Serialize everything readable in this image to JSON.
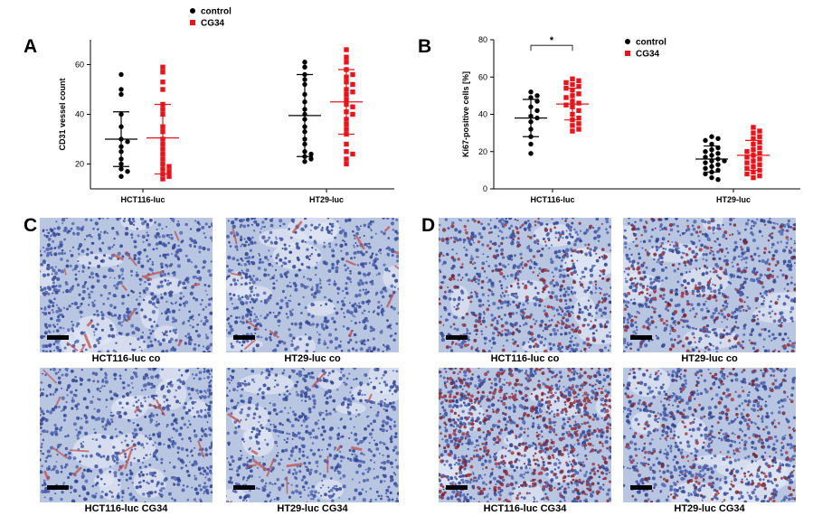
{
  "panel_labels": {
    "a": "A",
    "b": "B",
    "c": "C",
    "d": "D"
  },
  "colors": {
    "control": "#000000",
    "cg34": "#e8141b"
  },
  "chart_data": [
    {
      "id": "A",
      "type": "scatter",
      "ylabel": "CD31 vessel count",
      "ylim": [
        10,
        70
      ],
      "yticks": [
        20,
        40,
        60
      ],
      "groups": [
        "HCT116-luc",
        "HT29-luc"
      ],
      "legend": {
        "position": "top-right",
        "entries": [
          "control",
          "CG34"
        ]
      },
      "series": [
        {
          "name": "control",
          "group": "HCT116-luc",
          "mean": 30,
          "sd_low": 19,
          "sd_high": 41,
          "values": [
            56,
            50,
            48,
            40,
            35,
            30,
            29,
            27,
            25,
            22,
            20,
            18,
            17,
            15
          ]
        },
        {
          "name": "CG34",
          "group": "HCT116-luc",
          "mean": 30.5,
          "sd_low": 16,
          "sd_high": 44,
          "values": [
            59,
            57,
            53,
            50,
            44,
            42,
            40,
            35,
            33,
            30,
            28,
            26,
            24,
            22,
            20,
            19,
            18,
            17,
            16,
            15,
            14
          ]
        },
        {
          "name": "control",
          "group": "HT29-luc",
          "mean": 39.5,
          "sd_low": 23,
          "sd_high": 56,
          "values": [
            61,
            59,
            56,
            54,
            52,
            48,
            45,
            42,
            40,
            38,
            35,
            33,
            30,
            28,
            25,
            24,
            23,
            22,
            21
          ]
        },
        {
          "name": "CG34",
          "group": "HT29-luc",
          "mean": 45,
          "sd_low": 32,
          "sd_high": 58,
          "values": [
            66,
            63,
            61,
            58,
            56,
            55,
            53,
            52,
            50,
            49,
            48,
            46,
            44,
            43,
            41,
            40,
            38,
            36,
            34,
            32,
            28,
            25,
            24,
            22,
            20
          ]
        }
      ]
    },
    {
      "id": "B",
      "type": "scatter",
      "ylabel": "Ki67-positive cells [%]",
      "ylim": [
        0,
        80
      ],
      "yticks": [
        0,
        20,
        40,
        60,
        80
      ],
      "groups": [
        "HCT116-luc",
        "HT29-luc"
      ],
      "significance": {
        "label": "*",
        "between": [
          "control HCT116-luc",
          "CG34 HCT116-luc"
        ]
      },
      "legend": {
        "position": "top-right",
        "entries": [
          "control",
          "CG34"
        ]
      },
      "series": [
        {
          "name": "control",
          "group": "HCT116-luc",
          "mean": 38,
          "sd_low": 28,
          "sd_high": 48,
          "values": [
            52,
            50,
            49,
            47,
            44,
            42,
            39,
            38,
            36,
            32,
            28,
            24,
            19
          ]
        },
        {
          "name": "CG34",
          "group": "HCT116-luc",
          "mean": 45.5,
          "sd_low": 37,
          "sd_high": 54,
          "values": [
            59,
            58,
            57,
            56,
            55,
            54,
            53,
            51,
            50,
            49,
            47,
            46,
            45,
            44,
            42,
            40,
            38,
            37,
            35,
            34,
            32,
            31
          ]
        },
        {
          "name": "control",
          "group": "HT29-luc",
          "mean": 16,
          "sd_low": 9,
          "sd_high": 23,
          "values": [
            28,
            27,
            26,
            24,
            22,
            21,
            20,
            19,
            18,
            17,
            16,
            15,
            15,
            14,
            13,
            12,
            11,
            10,
            9,
            8,
            6,
            5
          ]
        },
        {
          "name": "CG34",
          "group": "HT29-luc",
          "mean": 18,
          "sd_low": 10,
          "sd_high": 26,
          "values": [
            33,
            31,
            30,
            28,
            27,
            25,
            24,
            22,
            21,
            20,
            19,
            18,
            17,
            16,
            15,
            14,
            13,
            12,
            11,
            10,
            9,
            8,
            7,
            6
          ]
        }
      ]
    }
  ],
  "images": {
    "c": [
      {
        "caption": "HCT116-luc co",
        "stain": "cd31",
        "seed": 3
      },
      {
        "caption": "HT29-luc co",
        "stain": "cd31",
        "seed": 7
      },
      {
        "caption": "HCT116-luc CG34",
        "stain": "cd31",
        "seed": 11
      },
      {
        "caption": "HT29-luc CG34",
        "stain": "cd31",
        "seed": 17
      }
    ],
    "d": [
      {
        "caption": "HCT116-luc co",
        "stain": "ki67",
        "seed": 23
      },
      {
        "caption": "HT29-luc co",
        "stain": "ki67",
        "seed": 29
      },
      {
        "caption": "HCT116-luc CG34",
        "stain": "ki67-dense",
        "seed": 31
      },
      {
        "caption": "HT29-luc CG34",
        "stain": "ki67",
        "seed": 37
      }
    ]
  }
}
